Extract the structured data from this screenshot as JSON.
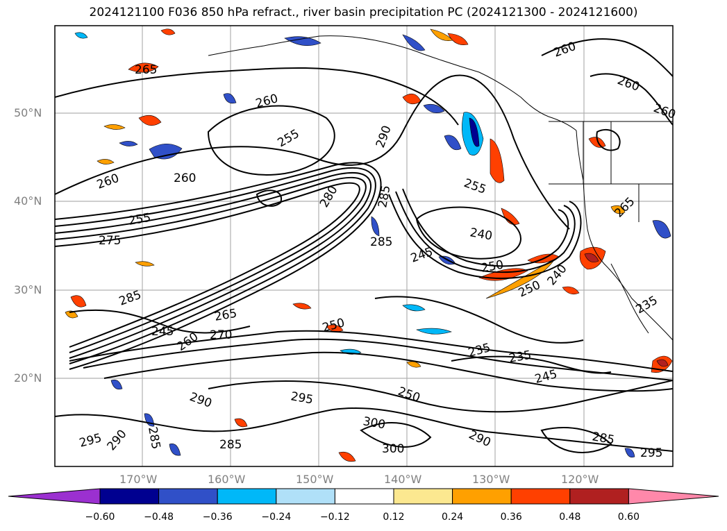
{
  "title": "2024121100 F036 850 hPa refract., river basin precipitation PC (2024121300 - 2024121600)",
  "map": {
    "lat_labels": [
      "50°N",
      "40°N",
      "30°N",
      "20°N"
    ],
    "lon_labels": [
      "170°W",
      "160°W",
      "150°W",
      "140°W",
      "130°W",
      "120°W"
    ],
    "gridlines": true,
    "contour_labels": [
      {
        "text": "265"
      },
      {
        "text": "260"
      },
      {
        "text": "255"
      },
      {
        "text": "260"
      },
      {
        "text": "260"
      },
      {
        "text": "260"
      },
      {
        "text": "255"
      },
      {
        "text": "275"
      },
      {
        "text": "280"
      },
      {
        "text": "285"
      },
      {
        "text": "285"
      },
      {
        "text": "240"
      },
      {
        "text": "250"
      },
      {
        "text": "245"
      },
      {
        "text": "255"
      },
      {
        "text": "250"
      },
      {
        "text": "240"
      },
      {
        "text": "285"
      },
      {
        "text": "290"
      },
      {
        "text": "250"
      },
      {
        "text": "245"
      },
      {
        "text": "260"
      },
      {
        "text": "270"
      },
      {
        "text": "265"
      },
      {
        "text": "235"
      },
      {
        "text": "235"
      },
      {
        "text": "245"
      },
      {
        "text": "250"
      },
      {
        "text": "295"
      },
      {
        "text": "290"
      },
      {
        "text": "300"
      },
      {
        "text": "300"
      },
      {
        "text": "290"
      },
      {
        "text": "285"
      },
      {
        "text": "295"
      },
      {
        "text": "285"
      },
      {
        "text": "290"
      },
      {
        "text": "295"
      },
      {
        "text": "285"
      },
      {
        "text": "260"
      },
      {
        "text": "265"
      },
      {
        "text": "235"
      },
      {
        "text": "260"
      }
    ]
  },
  "colorbar": {
    "ticks": [
      "−0.60",
      "−0.48",
      "−0.36",
      "−0.24",
      "−0.12",
      "0.12",
      "0.24",
      "0.36",
      "0.48",
      "0.60"
    ],
    "colors": [
      "#9b30d0",
      "#000090",
      "#3050c8",
      "#00b8f8",
      "#b0e0f8",
      "#ffffff",
      "#fce890",
      "#ffa000",
      "#ff4000",
      "#b02020",
      "#ff88aa"
    ]
  }
}
